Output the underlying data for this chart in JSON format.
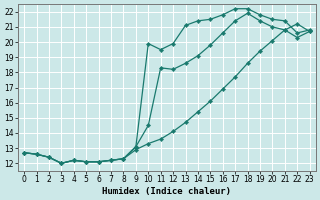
{
  "xlabel": "Humidex (Indice chaleur)",
  "background_color": "#cce8e8",
  "grid_color": "#ffffff",
  "line_color": "#1a7a6e",
  "xlim": [
    -0.5,
    23.5
  ],
  "ylim": [
    11.5,
    22.5
  ],
  "xticks": [
    0,
    1,
    2,
    3,
    4,
    5,
    6,
    7,
    8,
    9,
    10,
    11,
    12,
    13,
    14,
    15,
    16,
    17,
    18,
    19,
    20,
    21,
    22,
    23
  ],
  "yticks": [
    12,
    13,
    14,
    15,
    16,
    17,
    18,
    19,
    20,
    21,
    22
  ],
  "line1_x": [
    0,
    1,
    2,
    3,
    4,
    5,
    6,
    7,
    8,
    9,
    10,
    11,
    12,
    13,
    14,
    15,
    16,
    17,
    18,
    19,
    20,
    21,
    22,
    23
  ],
  "line1_y": [
    12.7,
    12.6,
    12.4,
    12.0,
    12.2,
    12.1,
    12.1,
    12.2,
    12.3,
    13.1,
    19.9,
    19.5,
    19.9,
    21.1,
    21.4,
    21.5,
    21.8,
    22.2,
    22.2,
    21.8,
    21.5,
    21.4,
    20.6,
    20.8
  ],
  "line2_x": [
    0,
    1,
    2,
    3,
    4,
    5,
    6,
    7,
    8,
    9,
    10,
    11,
    12,
    13,
    14,
    15,
    16,
    17,
    18,
    19,
    20,
    21,
    22,
    23
  ],
  "line2_y": [
    12.7,
    12.6,
    12.4,
    12.0,
    12.2,
    12.1,
    12.1,
    12.2,
    12.3,
    13.1,
    14.5,
    18.3,
    18.2,
    18.6,
    19.1,
    19.8,
    20.6,
    21.4,
    21.9,
    21.4,
    21.0,
    20.8,
    20.3,
    20.7
  ],
  "line3_x": [
    0,
    1,
    2,
    3,
    4,
    5,
    6,
    7,
    8,
    9,
    10,
    11,
    12,
    13,
    14,
    15,
    16,
    17,
    18,
    19,
    20,
    21,
    22,
    23
  ],
  "line3_y": [
    12.7,
    12.6,
    12.4,
    12.0,
    12.2,
    12.1,
    12.1,
    12.2,
    12.3,
    12.9,
    13.3,
    13.6,
    14.1,
    14.7,
    15.4,
    16.1,
    16.9,
    17.7,
    18.6,
    19.4,
    20.1,
    20.8,
    21.2,
    20.7
  ]
}
